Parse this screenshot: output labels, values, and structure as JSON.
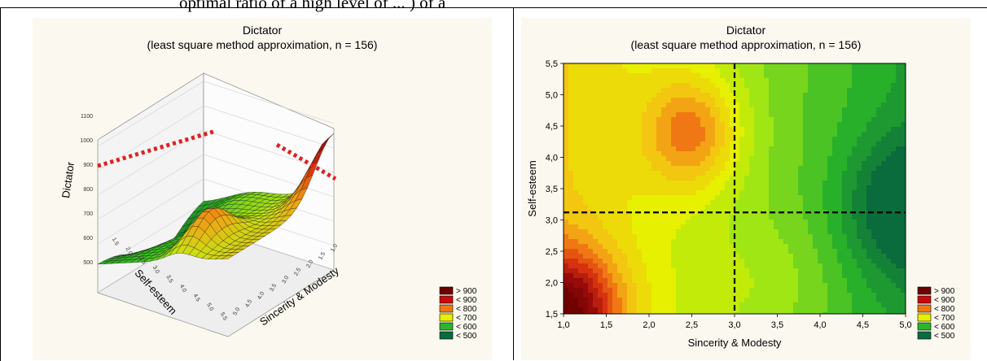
{
  "page": {
    "cut_text": "optimal ratio of a high level of ... ) of a"
  },
  "chart_data": [
    {
      "type": "surface",
      "title": "Dictator",
      "subtitle": "(least square method approximation, n = 156)",
      "zlabel": "Dictator",
      "xlabel": "Sincerity & Modesty",
      "ylabel": "Self-esteem",
      "z_ticks": [
        "500",
        "600",
        "700",
        "800",
        "900",
        "1000",
        "1100"
      ],
      "self_esteem_ticks": [
        "1.5",
        "2.0",
        "2.5",
        "3.0",
        "3.5",
        "4.0",
        "4.5",
        "5.0",
        "5.5"
      ],
      "sincerity_ticks": [
        "1.0",
        "1.5",
        "2.0",
        "2.5",
        "3.0",
        "3.5",
        "4.0",
        "4.5",
        "5.0"
      ],
      "legend": [
        {
          "label": "> 900",
          "color": "#6b0000"
        },
        {
          "label": "< 900",
          "color": "#c80a0a"
        },
        {
          "label": "< 800",
          "color": "#f07814"
        },
        {
          "label": "< 700",
          "color": "#e6f000"
        },
        {
          "label": "< 600",
          "color": "#2ab52a"
        },
        {
          "label": "< 500",
          "color": "#0a6b3c"
        }
      ]
    },
    {
      "type": "contour",
      "title": "Dictator",
      "subtitle": "(least square method approximation, n = 156)",
      "xlabel": "Sincerity & Modesty",
      "ylabel": "Self-esteem",
      "xlim": [
        1.0,
        5.0
      ],
      "ylim": [
        1.5,
        5.5
      ],
      "x_ticks": [
        "1,0",
        "1,5",
        "2,0",
        "2,5",
        "3,0",
        "3,5",
        "4,0",
        "4,5",
        "5,0"
      ],
      "y_ticks": [
        "1,5",
        "2,0",
        "2,5",
        "3,0",
        "3,5",
        "4,0",
        "4,5",
        "5,0",
        "5,5"
      ],
      "reference_lines": {
        "x": 3.0,
        "y": 3.12
      },
      "levels": [
        500,
        600,
        700,
        800,
        900
      ],
      "legend": [
        {
          "label": "> 900",
          "color": "#6b0000"
        },
        {
          "label": "< 900",
          "color": "#c80a0a"
        },
        {
          "label": "< 800",
          "color": "#f07814"
        },
        {
          "label": "< 700",
          "color": "#e6f000"
        },
        {
          "label": "< 600",
          "color": "#2ab52a"
        },
        {
          "label": "< 500",
          "color": "#0a6b3c"
        }
      ]
    }
  ]
}
